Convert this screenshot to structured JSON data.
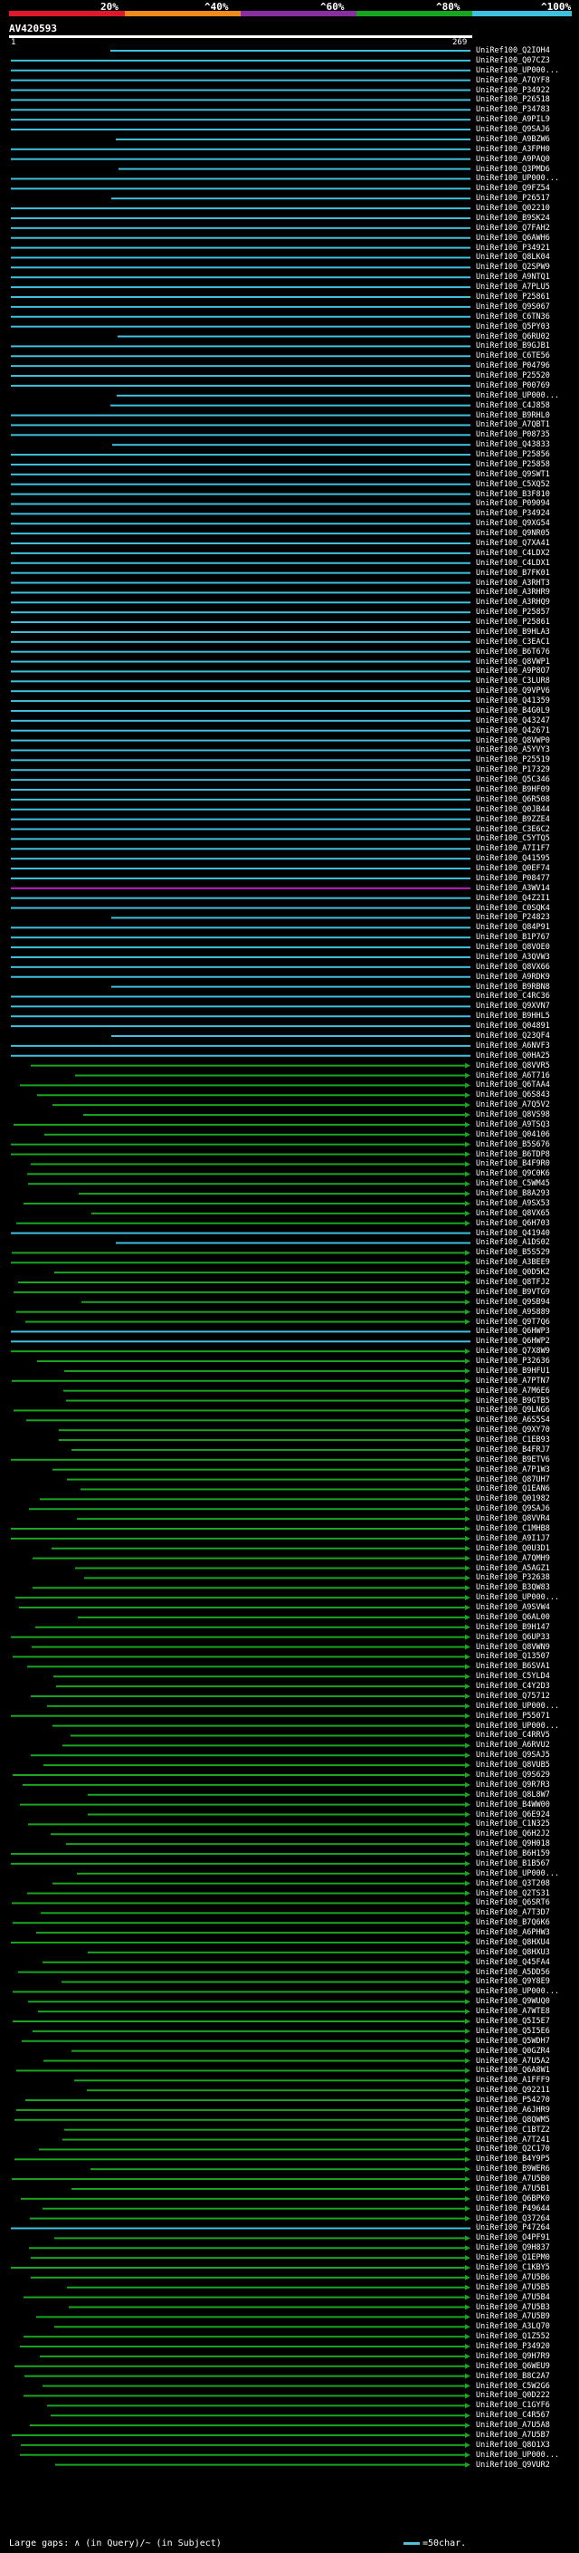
{
  "legend": {
    "ticks": [
      "20%",
      "^40%",
      "^60%",
      "^80%",
      "^100%"
    ],
    "colors": [
      "#e0182c",
      "#ef8a1c",
      "#8a2fa0",
      "#19a51f",
      "#3fc0de"
    ]
  },
  "query": {
    "title": "AV420593",
    "start": "1",
    "end": "269"
  },
  "hits": [
    {
      "name": "UniRef100_Q2IOH4",
      "band": "cyan"
    },
    {
      "name": "UniRef100_Q07CZ3",
      "band": "cyan"
    },
    {
      "name": "UniRef100_UP000...",
      "band": "cyan"
    },
    {
      "name": "UniRef100_A7QYF8",
      "band": "cyan"
    },
    {
      "name": "UniRef100_P34922",
      "band": "cyan"
    },
    {
      "name": "UniRef100_P26518",
      "band": "cyan"
    },
    {
      "name": "UniRef100_P34783",
      "band": "cyan"
    },
    {
      "name": "UniRef100_A9PIL9",
      "band": "cyan"
    },
    {
      "name": "UniRef100_Q9SAJ6",
      "band": "cyan"
    },
    {
      "name": "UniRef100_A9BZW6",
      "band": "cyan"
    },
    {
      "name": "UniRef100_A3FPH0",
      "band": "cyan"
    },
    {
      "name": "UniRef100_A9PAQ0",
      "band": "cyan"
    },
    {
      "name": "UniRef100_Q3PMD6",
      "band": "cyan"
    },
    {
      "name": "UniRef100_UP000...",
      "band": "cyan"
    },
    {
      "name": "UniRef100_Q9FZ54",
      "band": "cyan"
    },
    {
      "name": "UniRef100_P26517",
      "band": "cyan"
    },
    {
      "name": "UniRef100_Q02210",
      "band": "cyan"
    },
    {
      "name": "UniRef100_B9SK24",
      "band": "cyan"
    },
    {
      "name": "UniRef100_Q7FAH2",
      "band": "cyan"
    },
    {
      "name": "UniRef100_Q6AWH6",
      "band": "cyan"
    },
    {
      "name": "UniRef100_P34921",
      "band": "cyan"
    },
    {
      "name": "UniRef100_Q8LK04",
      "band": "cyan"
    },
    {
      "name": "UniRef100_Q2SPW9",
      "band": "cyan"
    },
    {
      "name": "UniRef100_A9NTQ1",
      "band": "cyan"
    },
    {
      "name": "UniRef100_A7PLU5",
      "band": "cyan"
    },
    {
      "name": "UniRef100_P25861",
      "band": "cyan"
    },
    {
      "name": "UniRef100_Q9S067",
      "band": "cyan"
    },
    {
      "name": "UniRef100_C6TN36",
      "band": "cyan"
    },
    {
      "name": "UniRef100_Q5PY03",
      "band": "cyan"
    },
    {
      "name": "UniRef100_Q6RU02",
      "band": "cyan"
    },
    {
      "name": "UniRef100_B9GJB1",
      "band": "cyan"
    },
    {
      "name": "UniRef100_C6TE56",
      "band": "cyan"
    },
    {
      "name": "UniRef100_P04796",
      "band": "cyan"
    },
    {
      "name": "UniRef100_P25520",
      "band": "cyan"
    },
    {
      "name": "UniRef100_P00769",
      "band": "cyan"
    },
    {
      "name": "UniRef100_UP000...",
      "band": "cyan"
    },
    {
      "name": "UniRef100_C4J858",
      "band": "cyan"
    },
    {
      "name": "UniRef100_B9RHL0",
      "band": "cyan"
    },
    {
      "name": "UniRef100_A7QBT1",
      "band": "cyan"
    },
    {
      "name": "UniRef100_P08735",
      "band": "cyan"
    },
    {
      "name": "UniRef100_Q43833",
      "band": "cyan"
    },
    {
      "name": "UniRef100_P25856",
      "band": "cyan"
    },
    {
      "name": "UniRef100_P25858",
      "band": "cyan"
    },
    {
      "name": "UniRef100_Q9SWT1",
      "band": "cyan"
    },
    {
      "name": "UniRef100_C5XQ52",
      "band": "cyan"
    },
    {
      "name": "UniRef100_B3F810",
      "band": "cyan"
    },
    {
      "name": "UniRef100_P09094",
      "band": "cyan"
    },
    {
      "name": "UniRef100_P34924",
      "band": "cyan"
    },
    {
      "name": "UniRef100_Q9XG54",
      "band": "cyan"
    },
    {
      "name": "UniRef100_Q9NR05",
      "band": "cyan"
    },
    {
      "name": "UniRef100_Q7XA41",
      "band": "cyan"
    },
    {
      "name": "UniRef100_C4LDX2",
      "band": "cyan"
    },
    {
      "name": "UniRef100_C4LDX1",
      "band": "cyan"
    },
    {
      "name": "UniRef100_B7FK01",
      "band": "cyan"
    },
    {
      "name": "UniRef100_A3RHT3",
      "band": "cyan"
    },
    {
      "name": "UniRef100_A3RHR9",
      "band": "cyan"
    },
    {
      "name": "UniRef100_A3RHQ9",
      "band": "cyan"
    },
    {
      "name": "UniRef100_P25857",
      "band": "cyan"
    },
    {
      "name": "UniRef100_P25861",
      "band": "cyan"
    },
    {
      "name": "UniRef100_B9HLA3",
      "band": "cyan"
    },
    {
      "name": "UniRef100_C3EAC1",
      "band": "cyan"
    },
    {
      "name": "UniRef100_B6T676",
      "band": "cyan"
    },
    {
      "name": "UniRef100_Q8VWP1",
      "band": "cyan"
    },
    {
      "name": "UniRef100_A9P8O7",
      "band": "cyan"
    },
    {
      "name": "UniRef100_C3LUR8",
      "band": "cyan"
    },
    {
      "name": "UniRef100_Q9VPV6",
      "band": "cyan"
    },
    {
      "name": "UniRef100_Q41359",
      "band": "cyan"
    },
    {
      "name": "UniRef100_B4G0L9",
      "band": "cyan"
    },
    {
      "name": "UniRef100_Q43247",
      "band": "cyan"
    },
    {
      "name": "UniRef100_Q42671",
      "band": "cyan"
    },
    {
      "name": "UniRef100_Q8VWP0",
      "band": "cyan"
    },
    {
      "name": "UniRef100_A5YVY3",
      "band": "cyan"
    },
    {
      "name": "UniRef100_P25519",
      "band": "cyan"
    },
    {
      "name": "UniRef100_P17329",
      "band": "cyan"
    },
    {
      "name": "UniRef100_Q5C346",
      "band": "cyan"
    },
    {
      "name": "UniRef100_B9HF09",
      "band": "cyan"
    },
    {
      "name": "UniRef100_Q6R508",
      "band": "cyan"
    },
    {
      "name": "UniRef100_Q0JB44",
      "band": "cyan"
    },
    {
      "name": "UniRef100_B9ZZE4",
      "band": "cyan"
    },
    {
      "name": "UniRef100_C3E6C2",
      "band": "cyan"
    },
    {
      "name": "UniRef100_C5YTQ5",
      "band": "cyan"
    },
    {
      "name": "UniRef100_A7I1F7",
      "band": "cyan"
    },
    {
      "name": "UniRef100_Q41595",
      "band": "cyan"
    },
    {
      "name": "UniRef100_Q0EF74",
      "band": "cyan"
    },
    {
      "name": "UniRef100_P08477",
      "band": "cyan"
    },
    {
      "name": "UniRef100_A3WV14",
      "band": "magenta"
    },
    {
      "name": "UniRef100_Q4Z2I1",
      "band": "cyan"
    },
    {
      "name": "UniRef100_C0SQK4",
      "band": "cyan"
    },
    {
      "name": "UniRef100_P24823",
      "band": "cyan"
    },
    {
      "name": "UniRef100_Q84P91",
      "band": "cyan"
    },
    {
      "name": "UniRef100_B1P767",
      "band": "cyan"
    },
    {
      "name": "UniRef100_Q8VOE0",
      "band": "cyan"
    },
    {
      "name": "UniRef100_A3QVW3",
      "band": "cyan"
    },
    {
      "name": "UniRef100_Q8VX66",
      "band": "cyan"
    },
    {
      "name": "UniRef100_A9RDK9",
      "band": "cyan"
    },
    {
      "name": "UniRef100_B9RBN8",
      "band": "cyan"
    },
    {
      "name": "UniRef100_C4RC36",
      "band": "cyan"
    },
    {
      "name": "UniRef100_Q9XVN7",
      "band": "cyan"
    },
    {
      "name": "UniRef100_B9HHL5",
      "band": "cyan"
    },
    {
      "name": "UniRef100_Q04891",
      "band": "cyan"
    },
    {
      "name": "UniRef100_Q23QF4",
      "band": "cyan"
    },
    {
      "name": "UniRef100_A6NVF3",
      "band": "cyan"
    },
    {
      "name": "UniRef100_Q0HA25",
      "band": "cyan"
    },
    {
      "name": "UniRef100_Q8VVR5",
      "band": "green"
    },
    {
      "name": "UniRef100_A6T716",
      "band": "green"
    },
    {
      "name": "UniRef100_Q6TAA4",
      "band": "green"
    },
    {
      "name": "UniRef100_Q6S843",
      "band": "green"
    },
    {
      "name": "UniRef100_A7Q5V2",
      "band": "green"
    },
    {
      "name": "UniRef100_Q8VS98",
      "band": "green"
    },
    {
      "name": "UniRef100_A9TSQ3",
      "band": "green"
    },
    {
      "name": "UniRef100_Q04106",
      "band": "green"
    },
    {
      "name": "UniRef100_B5S676",
      "band": "green"
    },
    {
      "name": "UniRef100_B6TDP8",
      "band": "green"
    },
    {
      "name": "UniRef100_B4F9R0",
      "band": "green"
    },
    {
      "name": "UniRef100_Q9C0K6",
      "band": "green"
    },
    {
      "name": "UniRef100_C5WM45",
      "band": "green"
    },
    {
      "name": "UniRef100_B8A293",
      "band": "green"
    },
    {
      "name": "UniRef100_A9SX53",
      "band": "green"
    },
    {
      "name": "UniRef100_Q8VX65",
      "band": "green"
    },
    {
      "name": "UniRef100_Q6H703",
      "band": "green"
    },
    {
      "name": "UniRef100_Q41940",
      "band": "cyan"
    },
    {
      "name": "UniRef100_A1DS02",
      "band": "cyan"
    },
    {
      "name": "UniRef100_B5S529",
      "band": "green"
    },
    {
      "name": "UniRef100_A3BEE9",
      "band": "green"
    },
    {
      "name": "UniRef100_Q0D5K2",
      "band": "green"
    },
    {
      "name": "UniRef100_Q8TFJ2",
      "band": "green"
    },
    {
      "name": "UniRef100_B9VTG9",
      "band": "green"
    },
    {
      "name": "UniRef100_Q9SB94",
      "band": "green"
    },
    {
      "name": "UniRef100_A9S889",
      "band": "green"
    },
    {
      "name": "UniRef100_Q9T7Q6",
      "band": "green"
    },
    {
      "name": "UniRef100_Q6HWP3",
      "band": "cyan"
    },
    {
      "name": "UniRef100_Q6HWP2",
      "band": "cyan"
    },
    {
      "name": "UniRef100_Q7X8W9",
      "band": "green"
    },
    {
      "name": "UniRef100_P32636",
      "band": "green"
    },
    {
      "name": "UniRef100_B9HFU1",
      "band": "green"
    },
    {
      "name": "UniRef100_A7PTN7",
      "band": "green"
    },
    {
      "name": "UniRef100_A7M6E6",
      "band": "green"
    },
    {
      "name": "UniRef100_B9GTB5",
      "band": "green"
    },
    {
      "name": "UniRef100_Q9LNG6",
      "band": "green"
    },
    {
      "name": "UniRef100_A6S5S4",
      "band": "green"
    },
    {
      "name": "UniRef100_Q9XY70",
      "band": "green"
    },
    {
      "name": "UniRef100_C1EB93",
      "band": "green"
    },
    {
      "name": "UniRef100_B4FRJ7",
      "band": "green"
    },
    {
      "name": "UniRef100_B9ETV6",
      "band": "green"
    },
    {
      "name": "UniRef100_A7P1W3",
      "band": "green"
    },
    {
      "name": "UniRef100_Q87UH7",
      "band": "green"
    },
    {
      "name": "UniRef100_Q1EAN6",
      "band": "green"
    },
    {
      "name": "UniRef100_Q01982",
      "band": "green"
    },
    {
      "name": "UniRef100_Q9SAJ6",
      "band": "green"
    },
    {
      "name": "UniRef100_Q8VVR4",
      "band": "green"
    },
    {
      "name": "UniRef100_C1MHB8",
      "band": "green"
    },
    {
      "name": "UniRef100_A9I1J7",
      "band": "green"
    },
    {
      "name": "UniRef100_Q0U3D1",
      "band": "green"
    },
    {
      "name": "UniRef100_A7QMH9",
      "band": "green"
    },
    {
      "name": "UniRef100_A5AGZ1",
      "band": "green"
    },
    {
      "name": "UniRef100_P32638",
      "band": "green"
    },
    {
      "name": "UniRef100_B3QW83",
      "band": "green"
    },
    {
      "name": "UniRef100_UP000...",
      "band": "green"
    },
    {
      "name": "UniRef100_A9SVW4",
      "band": "green"
    },
    {
      "name": "UniRef100_Q6AL00",
      "band": "green"
    },
    {
      "name": "UniRef100_B9H147",
      "band": "green"
    },
    {
      "name": "UniRef100_Q6UP33",
      "band": "green"
    },
    {
      "name": "UniRef100_Q8VWN9",
      "band": "green"
    },
    {
      "name": "UniRef100_Q13507",
      "band": "green"
    },
    {
      "name": "UniRef100_B6SVA1",
      "band": "green"
    },
    {
      "name": "UniRef100_C5YLD4",
      "band": "green"
    },
    {
      "name": "UniRef100_C4Y2D3",
      "band": "green"
    },
    {
      "name": "UniRef100_Q75712",
      "band": "green"
    },
    {
      "name": "UniRef100_UP000...",
      "band": "green"
    },
    {
      "name": "UniRef100_P55071",
      "band": "green"
    },
    {
      "name": "UniRef100_UP000...",
      "band": "green"
    },
    {
      "name": "UniRef100_C4RRV5",
      "band": "green"
    },
    {
      "name": "UniRef100_A6RVU2",
      "band": "green"
    },
    {
      "name": "UniRef100_Q9SAJ5",
      "band": "green"
    },
    {
      "name": "UniRef100_Q8VUB5",
      "band": "green"
    },
    {
      "name": "UniRef100_Q9S629",
      "band": "green"
    },
    {
      "name": "UniRef100_Q9R7R3",
      "band": "green"
    },
    {
      "name": "UniRef100_Q8L8W7",
      "band": "green"
    },
    {
      "name": "UniRef100_B4WW00",
      "band": "green"
    },
    {
      "name": "UniRef100_Q6E924",
      "band": "green"
    },
    {
      "name": "UniRef100_C1N325",
      "band": "green"
    },
    {
      "name": "UniRef100_Q6H2J2",
      "band": "green"
    },
    {
      "name": "UniRef100_Q9H018",
      "band": "green"
    },
    {
      "name": "UniRef100_B6H159",
      "band": "green"
    },
    {
      "name": "UniRef100_B1B567",
      "band": "green"
    },
    {
      "name": "UniRef100_UP000...",
      "band": "green"
    },
    {
      "name": "UniRef100_Q3T208",
      "band": "green"
    },
    {
      "name": "UniRef100_Q2TS31",
      "band": "green"
    },
    {
      "name": "UniRef100_Q6SRT6",
      "band": "green"
    },
    {
      "name": "UniRef100_A7T3D7",
      "band": "green"
    },
    {
      "name": "UniRef100_B7Q6K6",
      "band": "green"
    },
    {
      "name": "UniRef100_A6PHW3",
      "band": "green"
    },
    {
      "name": "UniRef100_Q8HXU4",
      "band": "green"
    },
    {
      "name": "UniRef100_Q8HXU3",
      "band": "green"
    },
    {
      "name": "UniRef100_Q45FA4",
      "band": "green"
    },
    {
      "name": "UniRef100_A5DD56",
      "band": "green"
    },
    {
      "name": "UniRef100_Q9Y8E9",
      "band": "green"
    },
    {
      "name": "UniRef100_UP000...",
      "band": "green"
    },
    {
      "name": "UniRef100_Q9WUQ0",
      "band": "green"
    },
    {
      "name": "UniRef100_A7WTE8",
      "band": "green"
    },
    {
      "name": "UniRef100_Q5I5E7",
      "band": "green"
    },
    {
      "name": "UniRef100_Q5I5E6",
      "band": "green"
    },
    {
      "name": "UniRef100_Q5WDH7",
      "band": "green"
    },
    {
      "name": "UniRef100_Q0GZR4",
      "band": "green"
    },
    {
      "name": "UniRef100_A7U5A2",
      "band": "green"
    },
    {
      "name": "UniRef100_Q6A8W1",
      "band": "green"
    },
    {
      "name": "UniRef100_A1FFF9",
      "band": "green"
    },
    {
      "name": "UniRef100_Q92211",
      "band": "green"
    },
    {
      "name": "UniRef100_P54270",
      "band": "green"
    },
    {
      "name": "UniRef100_A6JHR9",
      "band": "green"
    },
    {
      "name": "UniRef100_Q8QWM5",
      "band": "green"
    },
    {
      "name": "UniRef100_C1BTZ2",
      "band": "green"
    },
    {
      "name": "UniRef100_A7T241",
      "band": "green"
    },
    {
      "name": "UniRef100_Q2C170",
      "band": "green"
    },
    {
      "name": "UniRef100_B4Y9P5",
      "band": "green"
    },
    {
      "name": "UniRef100_B9WER6",
      "band": "green"
    },
    {
      "name": "UniRef100_A7U5B0",
      "band": "green"
    },
    {
      "name": "UniRef100_A7U5B1",
      "band": "green"
    },
    {
      "name": "UniRef100_Q6BPK0",
      "band": "green"
    },
    {
      "name": "UniRef100_P49644",
      "band": "green"
    },
    {
      "name": "UniRef100_Q37264",
      "band": "green"
    },
    {
      "name": "UniRef100_P47264",
      "band": "cyan"
    },
    {
      "name": "UniRef100_O4PF91",
      "band": "green"
    },
    {
      "name": "UniRef100_Q9H837",
      "band": "green"
    },
    {
      "name": "UniRef100_Q1EPM0",
      "band": "green"
    },
    {
      "name": "UniRef100_C1KBY5",
      "band": "green"
    },
    {
      "name": "UniRef100_A7U5B6",
      "band": "green"
    },
    {
      "name": "UniRef100_A7U5B5",
      "band": "green"
    },
    {
      "name": "UniRef100_A7U5B4",
      "band": "green"
    },
    {
      "name": "UniRef100_A7U5B3",
      "band": "green"
    },
    {
      "name": "UniRef100_A7U5B9",
      "band": "green"
    },
    {
      "name": "UniRef100_A3LQ70",
      "band": "green"
    },
    {
      "name": "UniRef100_Q1Z552",
      "band": "green"
    },
    {
      "name": "UniRef100_P34920",
      "band": "green"
    },
    {
      "name": "UniRef100_Q9H7R9",
      "band": "green"
    },
    {
      "name": "UniRef100_Q6WEU9",
      "band": "green"
    },
    {
      "name": "UniRef100_B8C2A7",
      "band": "green"
    },
    {
      "name": "UniRef100_C5W2G6",
      "band": "green"
    },
    {
      "name": "UniRef100_Q0D222",
      "band": "green"
    },
    {
      "name": "UniRef100_C1GYF6",
      "band": "green"
    },
    {
      "name": "UniRef100_C4R567",
      "band": "green"
    },
    {
      "name": "UniRef100_A7U5A8",
      "band": "green"
    },
    {
      "name": "UniRef100_A7U5B7",
      "band": "green"
    },
    {
      "name": "UniRef100_Q8O1X3",
      "band": "green"
    },
    {
      "name": "UniRef100_UP000...",
      "band": "green"
    },
    {
      "name": "UniRef100_Q9VUR2",
      "band": "green"
    }
  ],
  "footer": {
    "gaps_text": "Large gaps: ∧ (in Query)/~ (in Subject)",
    "scale_text": "=50char."
  }
}
